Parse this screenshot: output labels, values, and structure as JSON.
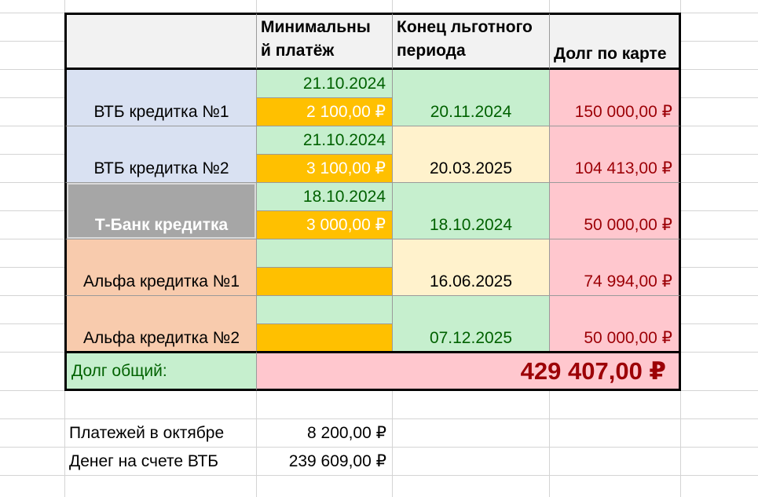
{
  "headers": {
    "min_payment": "Минимальный платёж",
    "min_payment_line1": "Минимальны",
    "min_payment_line2": "й платёж",
    "grace_end_line1": "Конец льготного",
    "grace_end_line2": "периода",
    "card_debt": "Долг по карте"
  },
  "cards": [
    {
      "name": "ВТБ кредитка №1",
      "min_date": "21.10.2024",
      "min_amount": "2 100,00 ₽",
      "grace_end": "20.11.2024",
      "debt": "150 000,00 ₽"
    },
    {
      "name": "ВТБ кредитка №2",
      "min_date": "21.10.2024",
      "min_amount": "3 100,00 ₽",
      "grace_end": "20.03.2025",
      "debt": "104 413,00 ₽"
    },
    {
      "name": "Т-Банк кредитка",
      "min_date": "18.10.2024",
      "min_amount": "3 000,00 ₽",
      "grace_end": "18.10.2024",
      "debt": "50 000,00 ₽"
    },
    {
      "name": "Альфа кредитка №1",
      "min_date": "",
      "min_amount": "",
      "grace_end": "16.06.2025",
      "debt": "74 994,00 ₽"
    },
    {
      "name": "Альфа кредитка №2",
      "min_date": "",
      "min_amount": "",
      "grace_end": "07.12.2025",
      "debt": "50 000,00 ₽"
    }
  ],
  "total": {
    "label": "Долг общий:",
    "value": "429 407,00 ₽"
  },
  "summary": [
    {
      "label": "Платежей в октябре",
      "value": "8 200,00 ₽"
    },
    {
      "label": "Денег на счете ВТБ",
      "value": "239 609,00 ₽"
    }
  ],
  "colors": {
    "header_bg": "#f2f2f2",
    "green_fill": "#c6efce",
    "green_text": "#006100",
    "red_fill": "#ffc7ce",
    "red_text": "#9c0006",
    "cream_fill": "#fff2cc",
    "blue_fill": "#d9e1f2",
    "grey_fill": "#a6a6a6",
    "peach_fill": "#f8cbad",
    "orange_fill": "#ffc000"
  }
}
